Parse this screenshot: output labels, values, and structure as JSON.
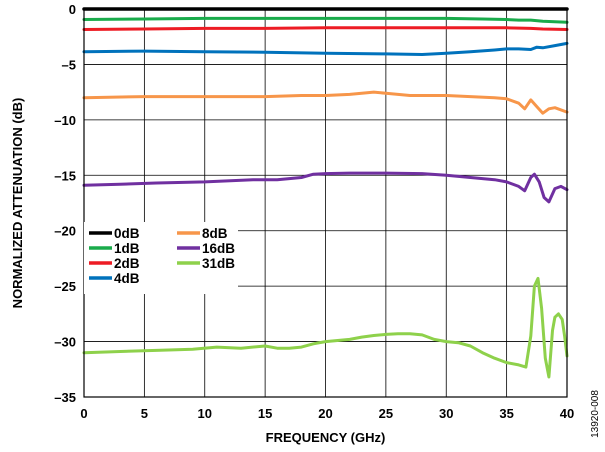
{
  "chart_data": {
    "type": "line",
    "xlabel": "FREQUENCY (GHz)",
    "ylabel": "NORMALIZED ATTENUATION (dB)",
    "xlim": [
      0,
      40
    ],
    "ylim": [
      -35,
      0
    ],
    "x_ticks": [
      0,
      5,
      10,
      15,
      20,
      25,
      30,
      35,
      40
    ],
    "y_ticks": [
      0,
      -5,
      -10,
      -15,
      -20,
      -25,
      -30,
      -35
    ],
    "x_tick_labels": [
      "0",
      "5",
      "10",
      "15",
      "20",
      "25",
      "30",
      "35",
      "40"
    ],
    "y_tick_labels": [
      "0",
      "–5",
      "–10",
      "–15",
      "–20",
      "–25",
      "–30",
      "–35"
    ],
    "grid": true,
    "legend_position": "lower-left",
    "figure_id": "13920-008",
    "series": [
      {
        "name": "0dB",
        "color": "#000000",
        "x": [
          0,
          5,
          10,
          15,
          20,
          25,
          30,
          35,
          40
        ],
        "y": [
          0,
          0,
          0,
          0,
          0,
          0,
          0,
          0,
          0
        ]
      },
      {
        "name": "1dB",
        "color": "#1aab4b",
        "x": [
          0,
          5,
          10,
          15,
          20,
          25,
          30,
          33,
          35,
          36,
          37,
          38,
          39,
          40
        ],
        "y": [
          -0.95,
          -0.9,
          -0.85,
          -0.85,
          -0.85,
          -0.85,
          -0.85,
          -0.9,
          -0.95,
          -1.0,
          -1.0,
          -1.1,
          -1.15,
          -1.2
        ]
      },
      {
        "name": "2dB",
        "color": "#ed1c24",
        "x": [
          0,
          5,
          10,
          15,
          20,
          25,
          30,
          35,
          37,
          38,
          40
        ],
        "y": [
          -1.85,
          -1.8,
          -1.75,
          -1.75,
          -1.7,
          -1.7,
          -1.7,
          -1.7,
          -1.75,
          -1.8,
          -1.85
        ]
      },
      {
        "name": "4dB",
        "color": "#0072bc",
        "x": [
          0,
          5,
          10,
          15,
          20,
          25,
          28,
          30,
          32,
          34,
          35,
          36,
          37,
          37.5,
          38,
          39,
          40
        ],
        "y": [
          -3.85,
          -3.8,
          -3.85,
          -3.9,
          -4.0,
          -4.05,
          -4.1,
          -4.0,
          -3.85,
          -3.7,
          -3.6,
          -3.6,
          -3.65,
          -3.45,
          -3.5,
          -3.3,
          -3.1
        ]
      },
      {
        "name": "8dB",
        "color": "#f7964a",
        "x": [
          0,
          5,
          10,
          15,
          18,
          20,
          22,
          24,
          25,
          27,
          30,
          32,
          34,
          35,
          36,
          36.5,
          37,
          37.5,
          38,
          38.5,
          39,
          40
        ],
        "y": [
          -8.0,
          -7.9,
          -7.9,
          -7.9,
          -7.8,
          -7.8,
          -7.7,
          -7.5,
          -7.6,
          -7.8,
          -7.8,
          -7.9,
          -8.0,
          -8.1,
          -8.5,
          -9.0,
          -8.2,
          -8.8,
          -9.4,
          -9.0,
          -8.9,
          -9.3
        ]
      },
      {
        "name": "16dB",
        "color": "#7030a0",
        "x": [
          0,
          3,
          6,
          10,
          14,
          16,
          18,
          19,
          20,
          22,
          25,
          28,
          30,
          32,
          34,
          35,
          36,
          36.5,
          37,
          37.3,
          37.7,
          38.1,
          38.5,
          39,
          39.5,
          40
        ],
        "y": [
          -15.9,
          -15.8,
          -15.7,
          -15.6,
          -15.4,
          -15.4,
          -15.2,
          -14.9,
          -14.85,
          -14.8,
          -14.8,
          -14.85,
          -15.0,
          -15.2,
          -15.4,
          -15.6,
          -16.0,
          -16.4,
          -15.2,
          -14.9,
          -15.6,
          -17.0,
          -17.4,
          -16.2,
          -16.0,
          -16.3
        ]
      },
      {
        "name": "31dB",
        "color": "#8ed14b",
        "x": [
          0,
          3,
          6,
          9,
          11,
          13,
          15,
          16,
          17,
          18,
          19,
          20,
          21,
          22,
          23,
          24,
          25,
          26,
          27,
          28,
          29,
          30,
          31,
          32,
          33,
          34,
          35,
          36,
          36.6,
          37,
          37.3,
          37.6,
          37.9,
          38.2,
          38.5,
          38.8,
          39,
          39.3,
          39.6,
          39.8,
          40
        ],
        "y": [
          -31.0,
          -30.9,
          -30.8,
          -30.7,
          -30.5,
          -30.6,
          -30.4,
          -30.6,
          -30.6,
          -30.5,
          -30.2,
          -30.0,
          -29.9,
          -29.8,
          -29.6,
          -29.45,
          -29.35,
          -29.3,
          -29.3,
          -29.4,
          -29.8,
          -30.0,
          -30.1,
          -30.4,
          -31.0,
          -31.5,
          -31.9,
          -32.1,
          -32.3,
          -29.5,
          -25.0,
          -24.3,
          -27.0,
          -31.5,
          -33.2,
          -29.0,
          -27.8,
          -27.5,
          -28.0,
          -29.5,
          -31.3
        ]
      }
    ]
  }
}
